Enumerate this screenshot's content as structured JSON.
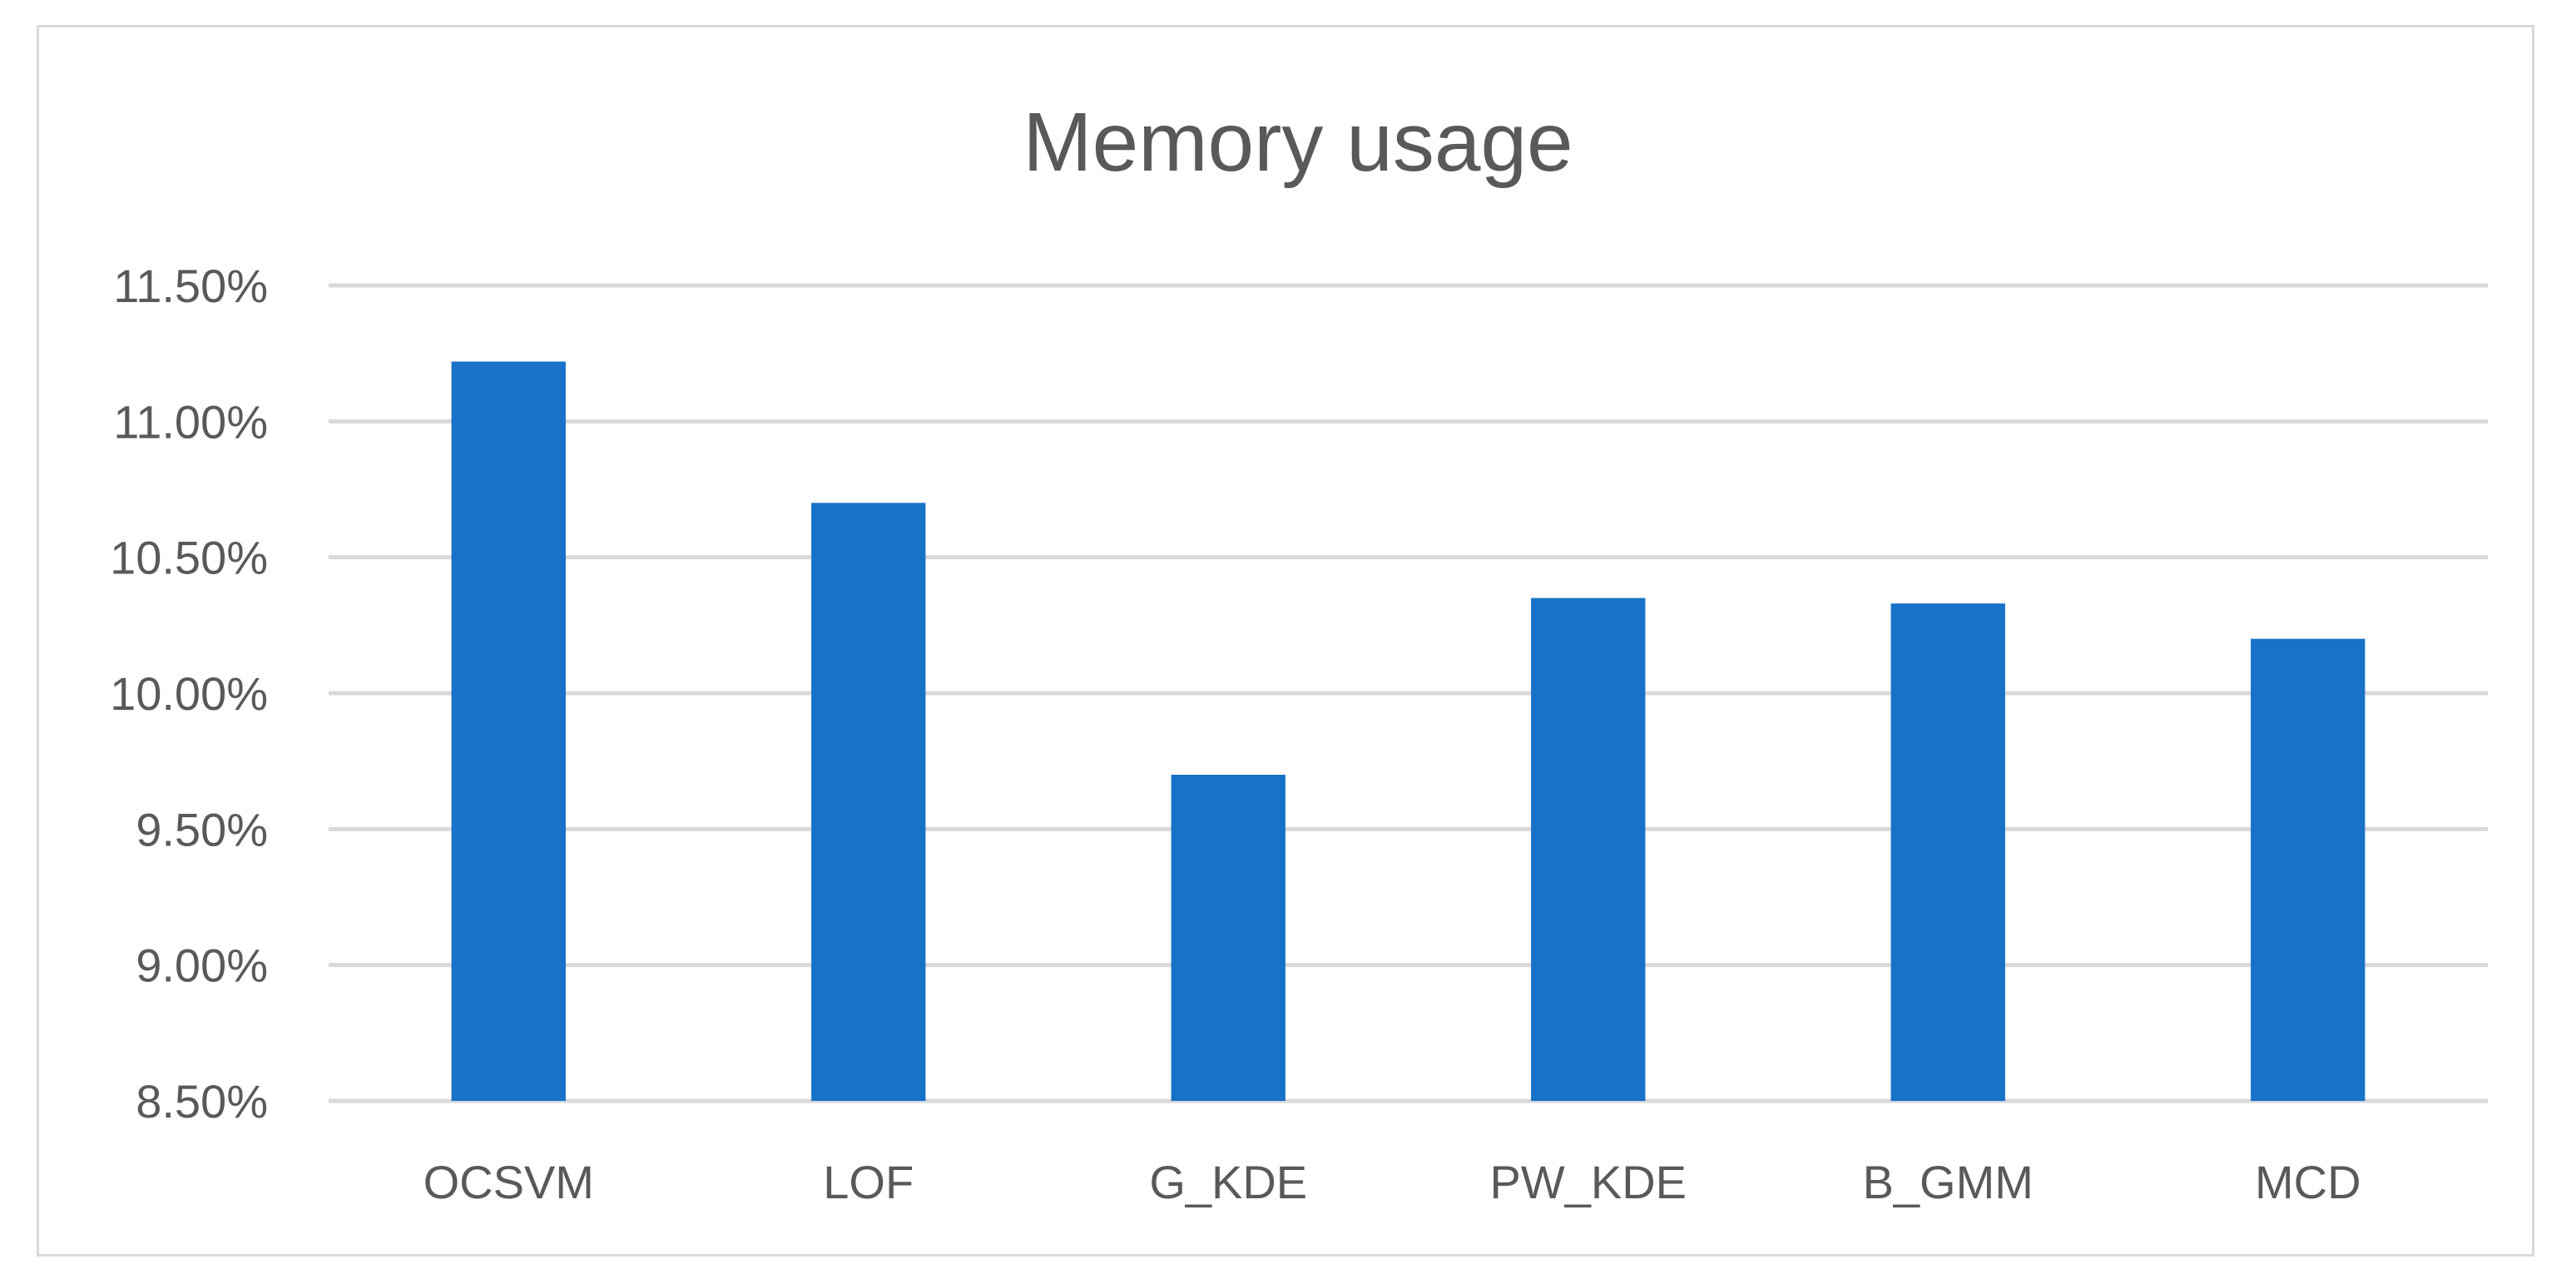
{
  "chart_data": {
    "type": "bar",
    "title": "Memory usage",
    "xlabel": "",
    "ylabel": "",
    "categories": [
      "OCSVM",
      "LOF",
      "G_KDE",
      "PW_KDE",
      "B_GMM",
      "MCD"
    ],
    "values": [
      11.22,
      10.7,
      9.7,
      10.35,
      10.33,
      10.2
    ],
    "ylim": [
      8.5,
      11.5
    ],
    "yticks": [
      8.5,
      9.0,
      9.5,
      10.0,
      10.5,
      11.0,
      11.5
    ],
    "ytick_labels": [
      "8.50%",
      "9.00%",
      "9.50%",
      "10.00%",
      "10.50%",
      "11.00%",
      "11.50%"
    ],
    "grid": true,
    "legend": "none",
    "bar_color": "#1772c8",
    "grid_color": "#d9d9d9"
  }
}
